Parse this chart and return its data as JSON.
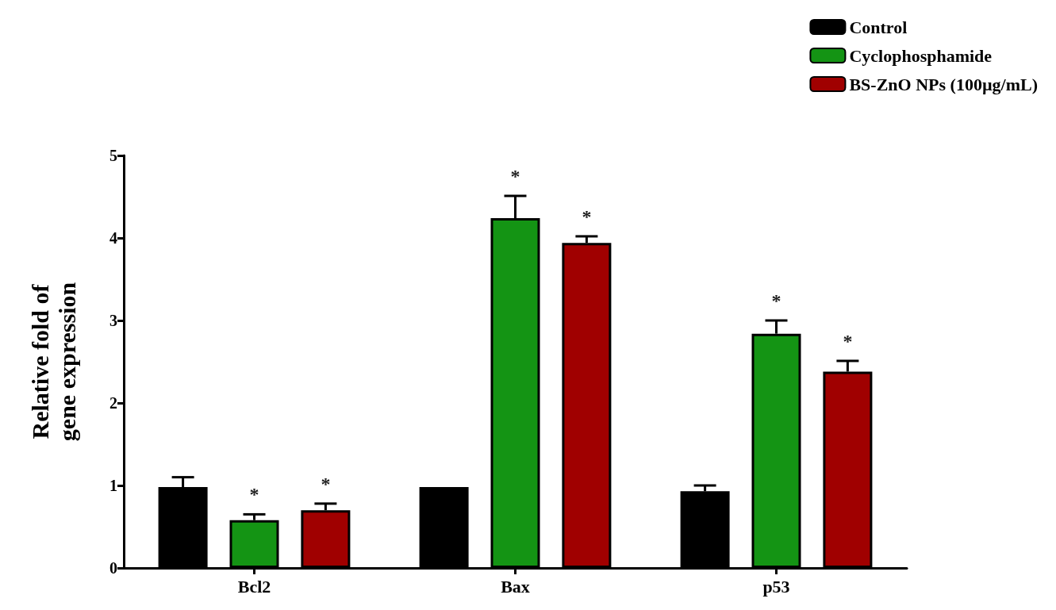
{
  "chart_data": {
    "type": "bar",
    "ylabel": "Relative fold of\ngene expression",
    "categories": [
      "Bcl2",
      "Bax",
      "p53"
    ],
    "series": [
      {
        "name": "Control",
        "color": "#000000",
        "values": [
          0.98,
          0.98,
          0.93
        ],
        "errors": [
          [
            0.98,
            1.1
          ],
          null,
          [
            0.93,
            1.0
          ]
        ]
      },
      {
        "name": "Cyclophosphamide",
        "color": "#149414",
        "values": [
          0.58,
          4.24,
          2.84
        ],
        "errors": [
          [
            0.58,
            0.65
          ],
          [
            4.24,
            4.51
          ],
          [
            2.84,
            3.0
          ]
        ],
        "value_labels": [
          "*",
          "*",
          "*"
        ]
      },
      {
        "name": "BS-ZnO NPs (100µg/mL)",
        "color": "#a00000",
        "values": [
          0.7,
          3.94,
          2.38
        ],
        "errors": [
          [
            0.7,
            0.78
          ],
          [
            3.94,
            4.02
          ],
          [
            2.38,
            2.51
          ]
        ],
        "value_labels": [
          "*",
          "*",
          "*"
        ]
      }
    ],
    "ylim": [
      0,
      5
    ],
    "yticks": [
      0,
      1,
      2,
      3,
      4,
      5
    ],
    "grid": false,
    "legend": "top right"
  }
}
